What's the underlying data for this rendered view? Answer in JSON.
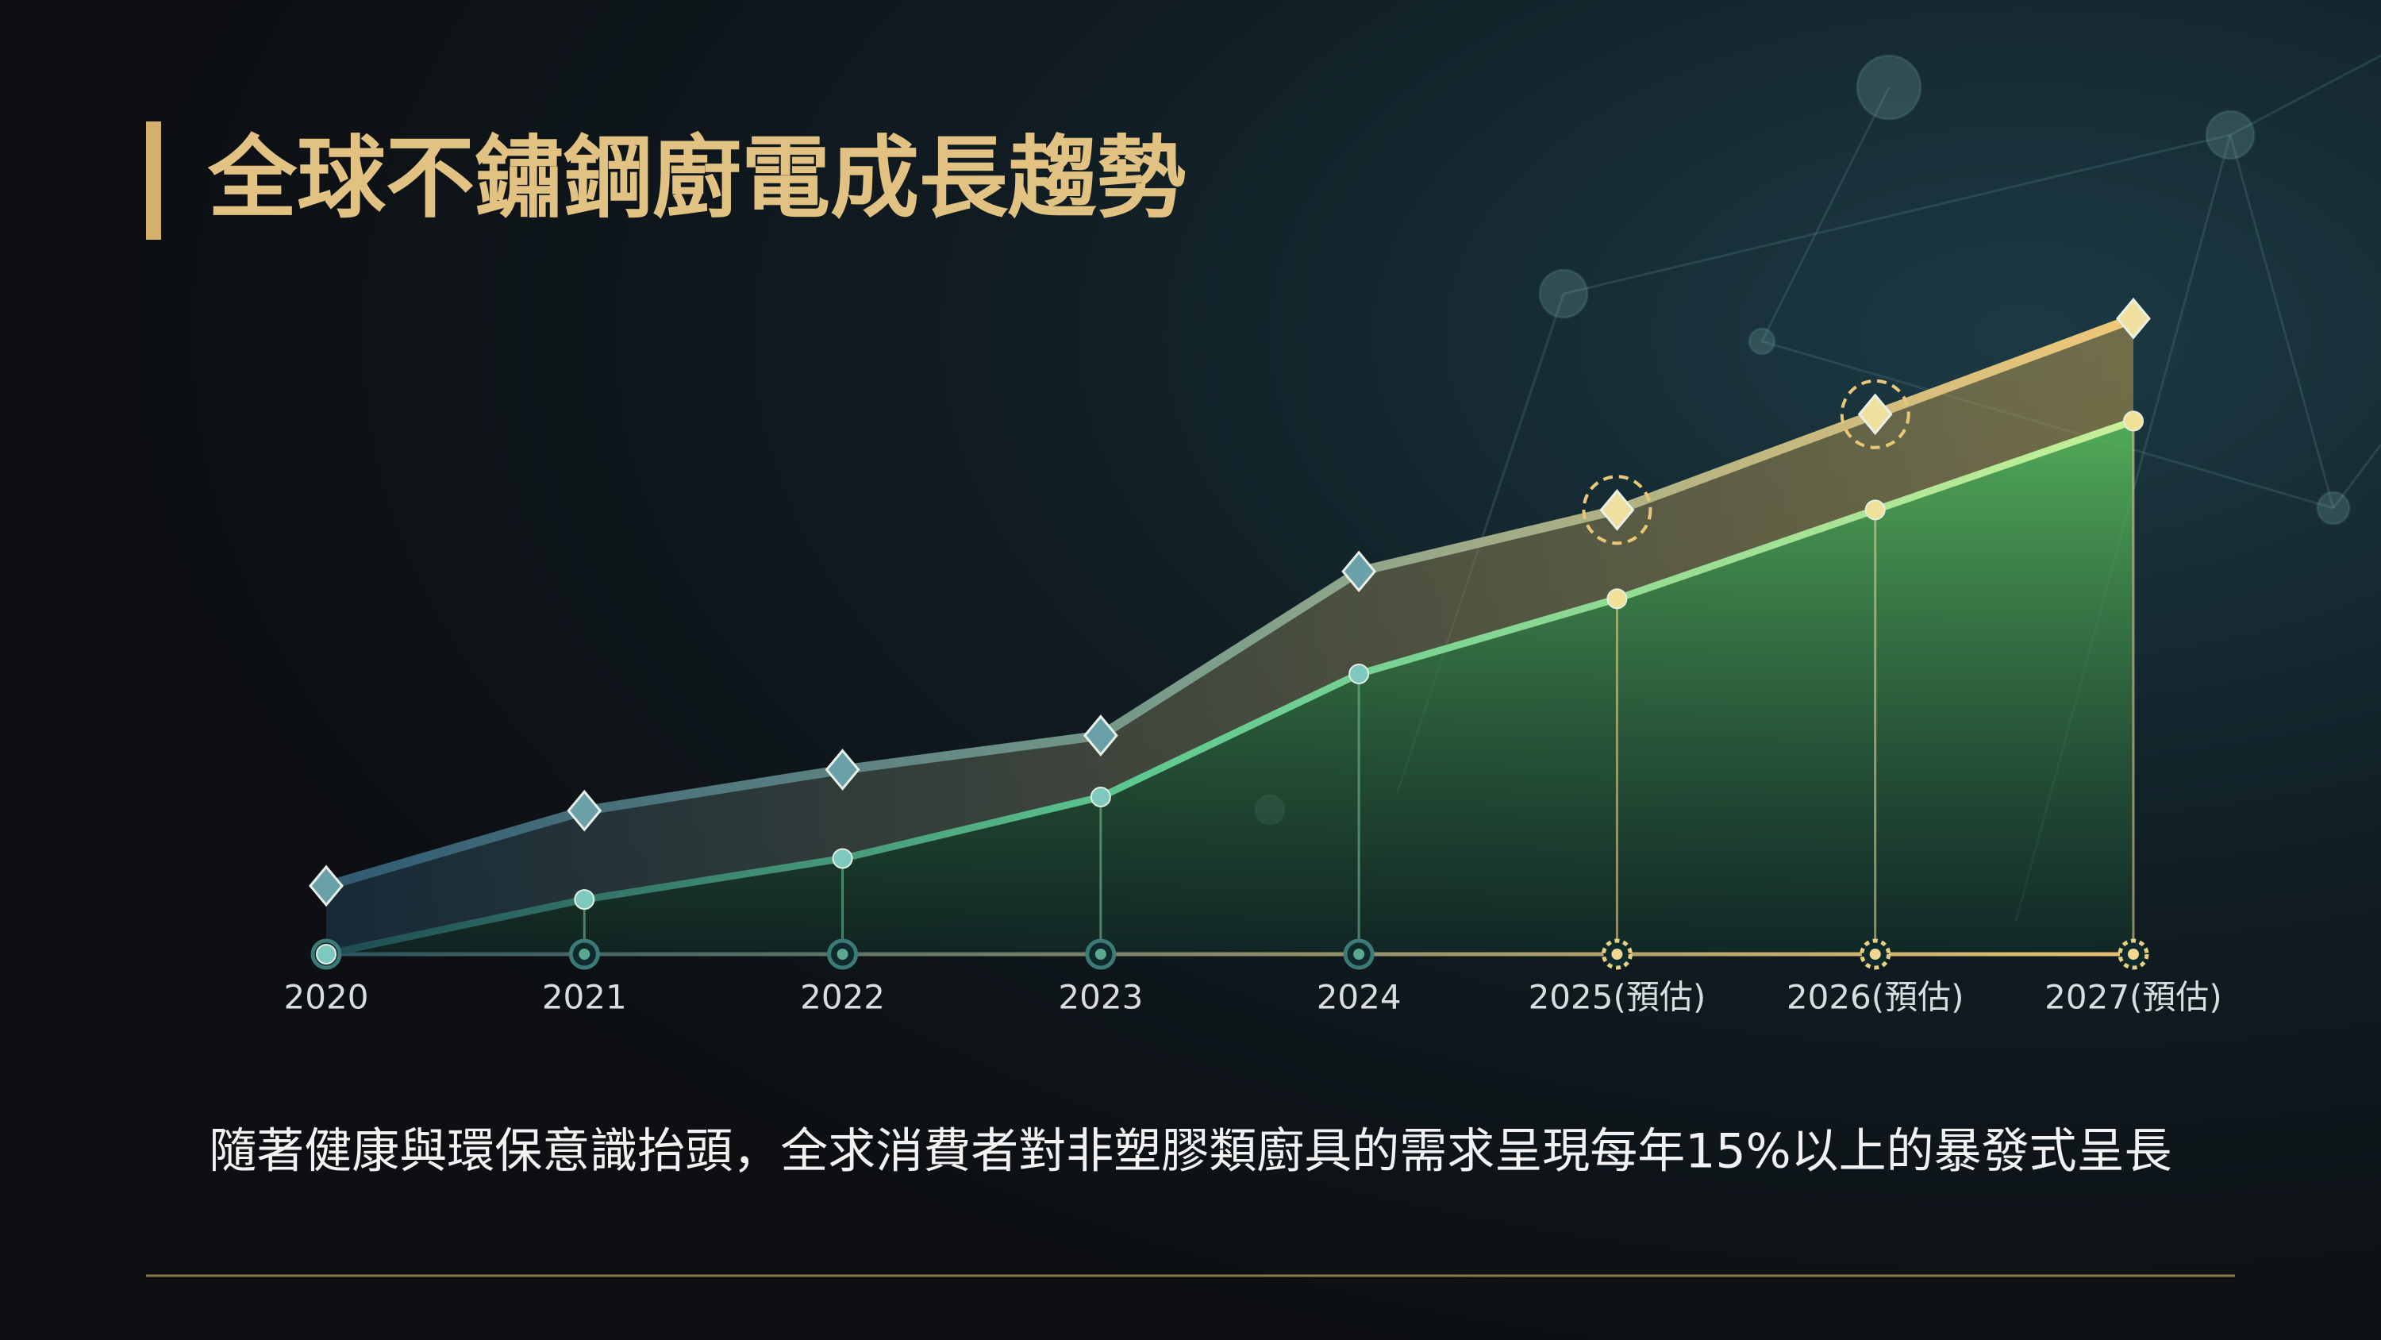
{
  "title": "全球不鏽鋼廚電成長趨勢",
  "chart_data": {
    "type": "line",
    "categories": [
      "2020",
      "2021",
      "2022",
      "2023",
      "2024",
      "2025(預估)",
      "2026(預估)",
      "2027(預估)"
    ],
    "series": [
      {
        "color": "#f0c878",
        "values": [
          10,
          21,
          27,
          32,
          56,
          65,
          79,
          93
        ]
      },
      {
        "color": "#c8f098",
        "values": [
          0,
          8,
          14,
          23,
          41,
          52,
          65,
          78
        ]
      }
    ],
    "ylim": [
      0,
      100
    ]
  },
  "caption": "隨著健康與環保意識抬頭，全求消費者對非塑膠類廚具的需求呈現每年15%以上的暴發式呈長"
}
